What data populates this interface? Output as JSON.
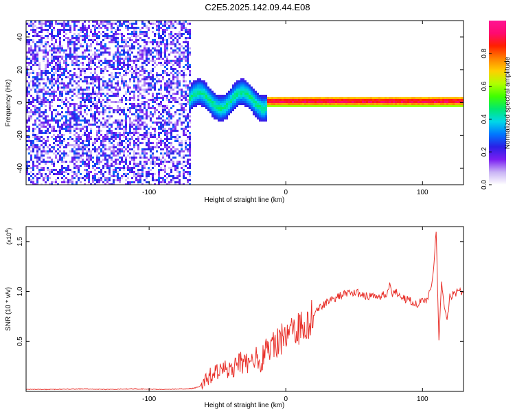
{
  "title": "C2E5.2025.142.09.44.E08",
  "chart_data": [
    {
      "type": "heatmap",
      "name": "spectrogram",
      "xlabel": "Height of straight line (km)",
      "ylabel": "Frequency (Hz)",
      "xlim": [
        -190,
        130
      ],
      "ylim": [
        -50,
        50
      ],
      "xticks": [
        -100,
        0,
        100
      ],
      "yticks": [
        -40,
        -20,
        0,
        20,
        40
      ],
      "grid": false,
      "colorbar": {
        "label": "Normalized spectral amplitude",
        "range": [
          0,
          1
        ],
        "ticks": [
          "0.0",
          "0.2",
          "0.4",
          "0.6",
          "0.8"
        ],
        "colors": [
          "#ffffff",
          "#c9b3f5",
          "#7a1ff2",
          "#2a1fe6",
          "#0077ff",
          "#00d8e8",
          "#00e870",
          "#40ff00",
          "#b0ff00",
          "#ffd000",
          "#ff8000",
          "#ff2000",
          "#ff0a70",
          "#ff1493"
        ]
      },
      "regions": [
        {
          "desc": "broadband noise",
          "x_range": [
            -190,
            -70
          ],
          "freq_range": [
            -50,
            50
          ],
          "amplitude": [
            0.05,
            0.3
          ]
        },
        {
          "desc": "signal onset scatter",
          "x_range": [
            -72,
            -15
          ],
          "freq_center": [
            2,
            7
          ],
          "freq_width": 8,
          "amplitude": [
            0.2,
            0.5
          ]
        },
        {
          "desc": "stable carrier line",
          "x_range": [
            -15,
            130
          ],
          "freq_center": 1.5,
          "freq_width": 3,
          "amplitude": [
            0.6,
            1.0
          ]
        }
      ]
    },
    {
      "type": "line",
      "name": "snr",
      "xlabel": "Height of straight line (km)",
      "ylabel": "SNR (10 * v/v)",
      "y_multiplier": "(x10",
      "y_multiplier_exp": "4",
      "y_multiplier_close": ")",
      "xlim": [
        -190,
        130
      ],
      "ylim": [
        0,
        1.65
      ],
      "xticks": [
        -100,
        0,
        100
      ],
      "yticks": [
        "0.5",
        "1.0",
        "1.5"
      ],
      "ytick_values": [
        0.5,
        1.0,
        1.5
      ],
      "grid": false,
      "color": "#e8302a",
      "series": [
        {
          "x": [
            -190,
            -170,
            -150,
            -130,
            -110,
            -90,
            -75,
            -68,
            -63,
            -58,
            -53,
            -48,
            -43,
            -38,
            -33,
            -28,
            -23,
            -18,
            -14,
            -10,
            -6,
            -2,
            2,
            6,
            10,
            14,
            18,
            22,
            26,
            30,
            34,
            38,
            42,
            46,
            50,
            54,
            58,
            62,
            66,
            70,
            74,
            76,
            78,
            80,
            84,
            88,
            92,
            96,
            100,
            104,
            106,
            108,
            110,
            112,
            114,
            116,
            118,
            120,
            124,
            128,
            130
          ],
          "y": [
            0.02,
            0.02,
            0.025,
            0.02,
            0.025,
            0.02,
            0.025,
            0.03,
            0.05,
            0.12,
            0.18,
            0.2,
            0.22,
            0.25,
            0.3,
            0.28,
            0.35,
            0.3,
            0.42,
            0.5,
            0.48,
            0.55,
            0.6,
            0.65,
            0.62,
            0.7,
            0.72,
            0.82,
            0.85,
            0.9,
            0.92,
            0.95,
            0.97,
            0.98,
            0.99,
            0.98,
            0.96,
            0.95,
            0.94,
            0.96,
            0.97,
            1.08,
            0.98,
            1.0,
            0.97,
            0.92,
            0.9,
            0.88,
            0.9,
            0.9,
            1.05,
            1.2,
            1.6,
            0.5,
            1.1,
            0.85,
            0.7,
            0.95,
            0.98,
            1.0,
            0.98
          ]
        }
      ]
    }
  ]
}
